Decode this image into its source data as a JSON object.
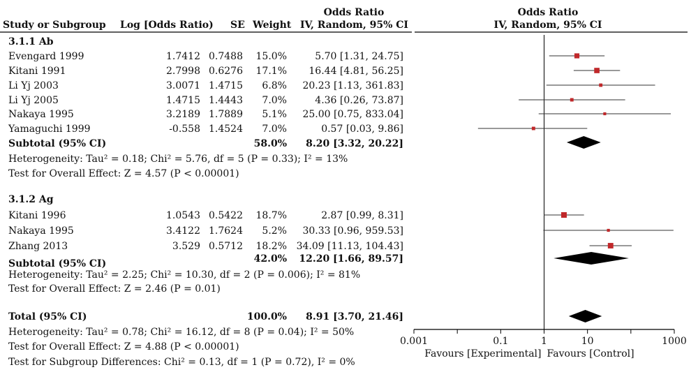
{
  "header": {
    "study_col": "Study or Subgroup",
    "log_or_col": "Log [Odds Ratio)",
    "se_col": "SE",
    "weight_col": "Weight",
    "or_col_line1": "Odds Ratio",
    "or_col_line2": "IV, Random, 95% CI",
    "plot_col_line1": "Odds Ratio",
    "plot_col_line2": "IV, Random, 95% CI"
  },
  "groups": [
    {
      "title": "3.1.1 Ab",
      "studies": [
        {
          "name": "Evengard 1999",
          "log_or": "1.7412",
          "se": "0.7488",
          "weight": "15.0%",
          "ci_text": "5.70 [1.31, 24.75]"
        },
        {
          "name": "Kitani 1991",
          "log_or": "2.7998",
          "se": "0.6276",
          "weight": "17.1%",
          "ci_text": "16.44 [4.81, 56.25]"
        },
        {
          "name": "Li Yj 2003",
          "log_or": "3.0071",
          "se": "1.4715",
          "weight": "6.8%",
          "ci_text": "20.23 [1.13, 361.83]"
        },
        {
          "name": "Li Yj 2005",
          "log_or": "1.4715",
          "se": "1.4443",
          "weight": "7.0%",
          "ci_text": "4.36 [0.26, 73.87]"
        },
        {
          "name": "Nakaya 1995",
          "log_or": "3.2189",
          "se": "1.7889",
          "weight": "5.1%",
          "ci_text": "25.00 [0.75, 833.04]"
        },
        {
          "name": "Yamaguchi 1999",
          "log_or": "-0.558",
          "se": "1.4524",
          "weight": "7.0%",
          "ci_text": "0.57 [0.03, 9.86]"
        }
      ],
      "subtotal": {
        "label": "Subtotal (95% CI)",
        "weight": "58.0%",
        "ci_text": "8.20 [3.32, 20.22]"
      },
      "heterogeneity": "Heterogeneity: Tau² = 0.18; Chi² = 5.76, df = 5 (P = 0.33); I² = 13%",
      "overall_effect": "Test for Overall Effect: Z = 4.57 (P < 0.00001)"
    },
    {
      "title": "3.1.2 Ag",
      "studies": [
        {
          "name": "Kitani 1996",
          "log_or": "1.0543",
          "se": "0.5422",
          "weight": "18.7%",
          "ci_text": "2.87 [0.99, 8.31]"
        },
        {
          "name": "Nakaya 1995",
          "log_or": "3.4122",
          "se": "1.7624",
          "weight": "5.2%",
          "ci_text": "30.33 [0.96, 959.53]"
        },
        {
          "name": "Zhang 2013",
          "log_or": "3.529",
          "se": "0.5712",
          "weight": "18.2%",
          "ci_text": "34.09 [11.13, 104.43]"
        }
      ],
      "subtotal": {
        "label": "Subtotal (95% CI)",
        "weight": "42.0%",
        "ci_text": "12.20 [1.66, 89.57]"
      },
      "heterogeneity": "Heterogeneity: Tau² = 2.25; Chi² = 10.30, df = 2 (P = 0.006); I² = 81%",
      "overall_effect": "Test for Overall Effect: Z = 2.46 (P = 0.01)"
    }
  ],
  "total": {
    "label": "Total (95% CI)",
    "weight": "100.0%",
    "ci_text": "8.91 [3.70, 21.46]",
    "heterogeneity": "Heterogeneity: Tau² = 0.78; Chi² = 16.12, df = 8 (P = 0.04); I² = 50%",
    "overall_effect": "Test for Overall Effect: Z = 4.88 (P < 0.00001)",
    "subgroup_diff": "Test for Subgroup Differences: Chi² = 0.13, df = 1 (P = 0.72), I² = 0%"
  },
  "axis": {
    "ticks": [
      "0.001",
      "0.1",
      "1",
      "10",
      "1000"
    ],
    "favours_left": "Favours [Experimental]",
    "favours_right": "Favours [Control]"
  },
  "colors": {
    "marker": "#c0282a",
    "ink": "#000000"
  },
  "chart_data": {
    "type": "forest",
    "scale": "log10",
    "xlim": [
      0.001,
      1000
    ],
    "reference_line": 1,
    "series": [
      {
        "study": "Evengard 1999",
        "or": 5.7,
        "lo": 1.31,
        "hi": 24.75,
        "weight": 15.0
      },
      {
        "study": "Kitani 1991",
        "or": 16.44,
        "lo": 4.81,
        "hi": 56.25,
        "weight": 17.1
      },
      {
        "study": "Li Yj 2003",
        "or": 20.23,
        "lo": 1.13,
        "hi": 361.83,
        "weight": 6.8
      },
      {
        "study": "Li Yj 2005",
        "or": 4.36,
        "lo": 0.26,
        "hi": 73.87,
        "weight": 7.0
      },
      {
        "study": "Nakaya 1995",
        "or": 25.0,
        "lo": 0.75,
        "hi": 833.04,
        "weight": 5.1
      },
      {
        "study": "Yamaguchi 1999",
        "or": 0.57,
        "lo": 0.03,
        "hi": 9.86,
        "weight": 7.0
      },
      {
        "study": "Subtotal 3.1.1 Ab",
        "or": 8.2,
        "lo": 3.32,
        "hi": 20.22,
        "weight": 58.0,
        "diamond": true
      },
      {
        "study": "Kitani 1996",
        "or": 2.87,
        "lo": 0.99,
        "hi": 8.31,
        "weight": 18.7
      },
      {
        "study": "Nakaya 1995",
        "or": 30.33,
        "lo": 0.96,
        "hi": 959.53,
        "weight": 5.2
      },
      {
        "study": "Zhang 2013",
        "or": 34.09,
        "lo": 11.13,
        "hi": 104.43,
        "weight": 18.2
      },
      {
        "study": "Subtotal 3.1.2 Ag",
        "or": 12.2,
        "lo": 1.66,
        "hi": 89.57,
        "weight": 42.0,
        "diamond": true
      },
      {
        "study": "Total",
        "or": 8.91,
        "lo": 3.7,
        "hi": 21.46,
        "weight": 100.0,
        "diamond": true
      }
    ]
  }
}
